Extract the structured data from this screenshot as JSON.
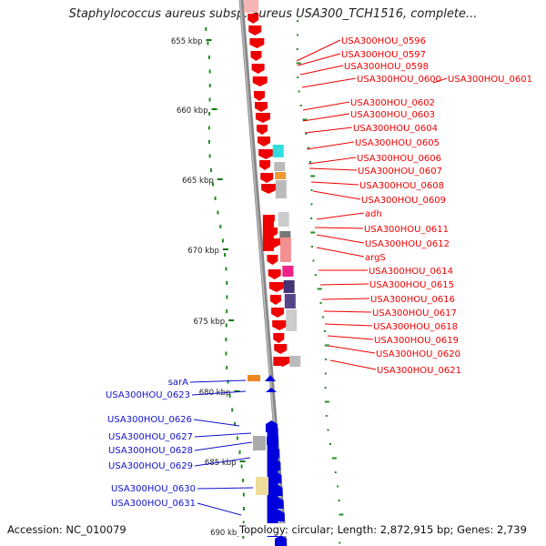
{
  "title": "Staphylococcus aureus subsp. aureus USA300_TCH1516, complete...",
  "footer": {
    "accession": "Accession: NC_010079",
    "summary": "Topology: circular; Length: 2,872,915 bp; Genes: 2,739"
  },
  "ticks": [
    "655 kbp",
    "660 kbp",
    "665 kbp",
    "670 kbp",
    "675 kbp",
    "680 kbp",
    "685 kbp",
    "690 kbp"
  ],
  "colors": {
    "forward": "#ee0000",
    "reverse": "#0000dd",
    "backbone": "#888888",
    "gc_dots": "#228b22"
  },
  "right_labels": [
    "USA300HOU_0596",
    "USA300HOU_0597",
    "USA300HOU_0598",
    "USA300HOU_0600",
    "USA300HOU_0601",
    "USA300HOU_0602",
    "USA300HOU_0603",
    "USA300HOU_0604",
    "USA300HOU_0605",
    "USA300HOU_0606",
    "USA300HOU_0607",
    "USA300HOU_0608",
    "USA300HOU_0609",
    "adh",
    "USA300HOU_0611",
    "USA300HOU_0612",
    "argS",
    "USA300HOU_0614",
    "USA300HOU_0615",
    "USA300HOU_0616",
    "USA300HOU_0617",
    "USA300HOU_0618",
    "USA300HOU_0619",
    "USA300HOU_0620",
    "USA300HOU_0621"
  ],
  "left_labels": [
    "sarA",
    "USA300HOU_0623",
    "USA300HOU_0626",
    "USA300HOU_0627",
    "USA300HOU_0628",
    "USA300HOU_0629",
    "USA300HOU_0630",
    "USA300HOU_0631"
  ]
}
